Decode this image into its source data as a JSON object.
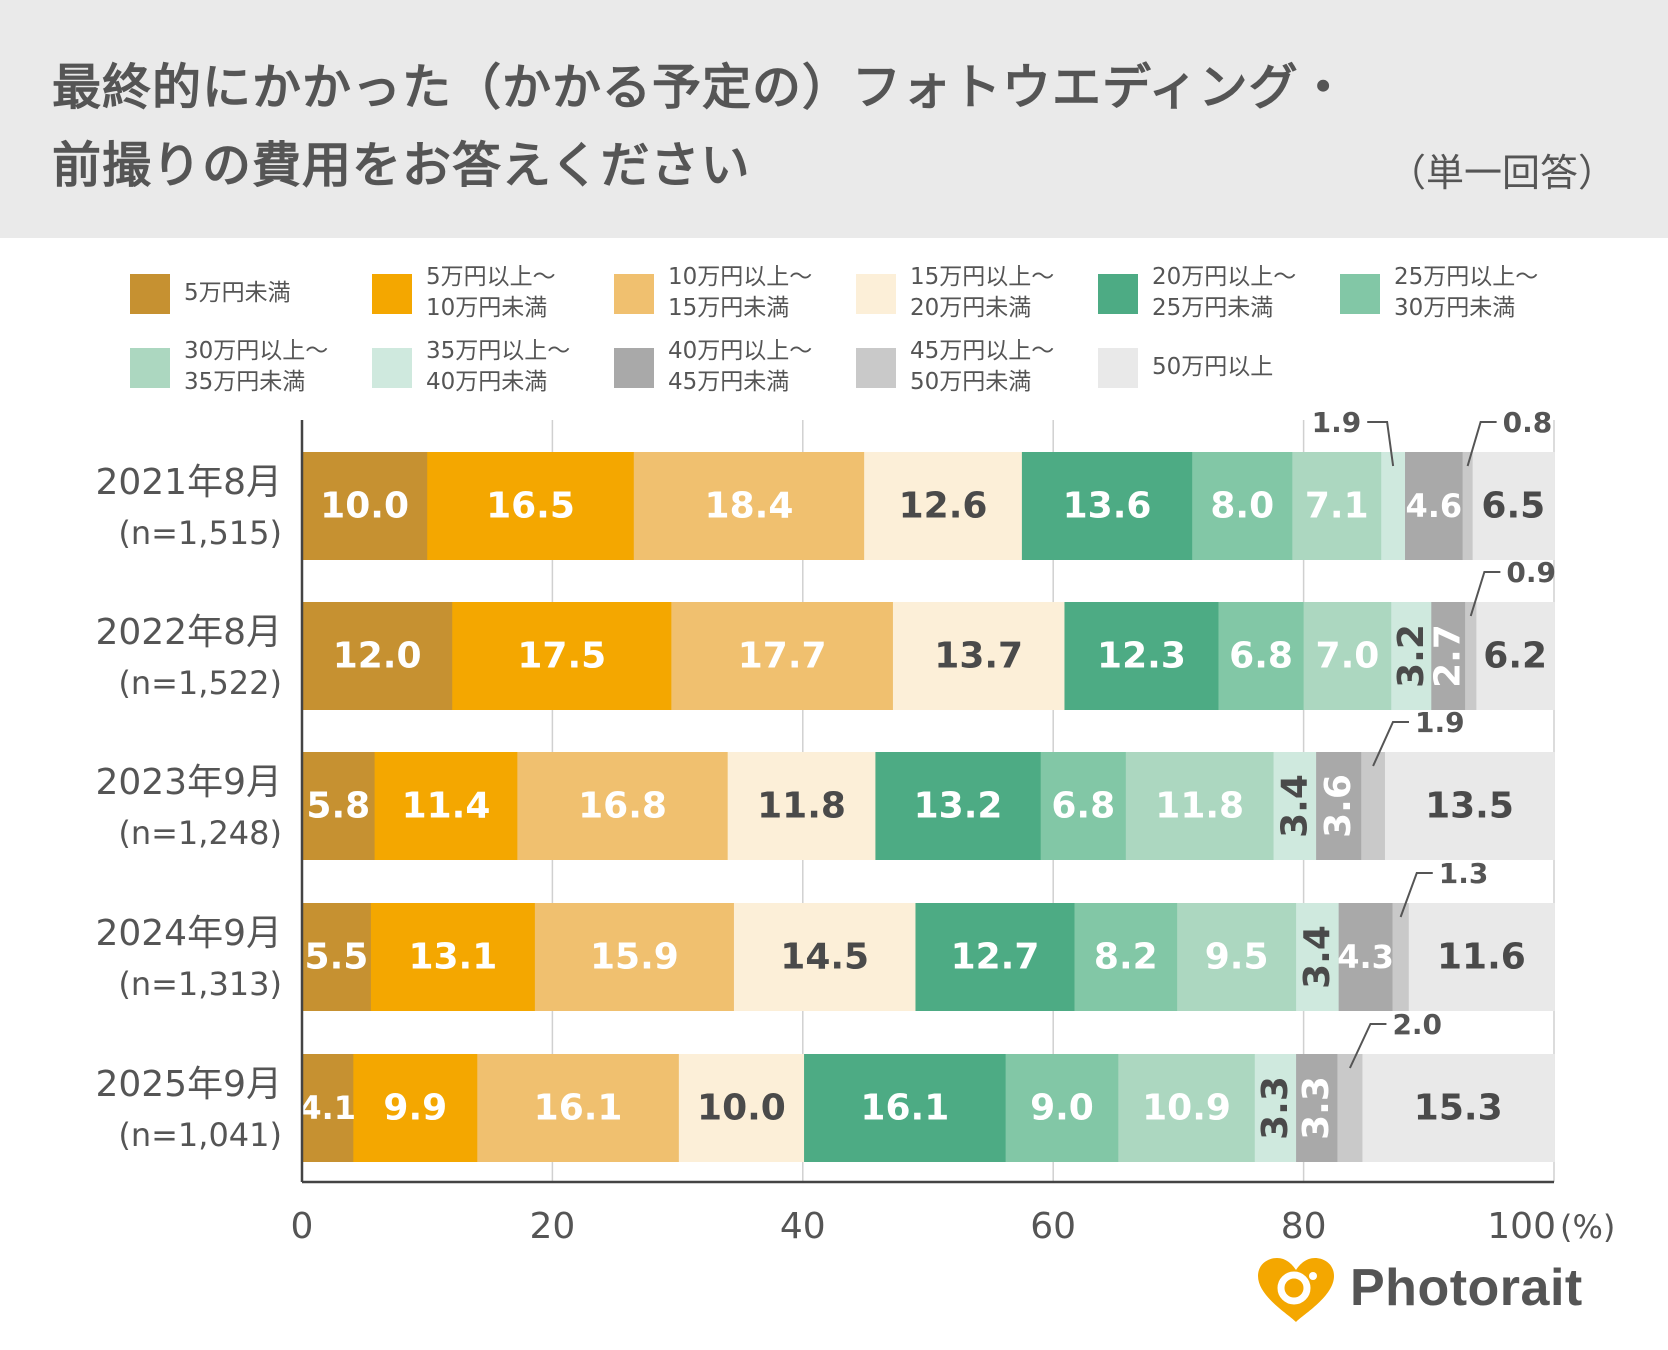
{
  "title": {
    "line1": "最終的にかかった（かかる予定の）フォトウエディング・",
    "line2": "前撮りの費用をお答えください",
    "subtitle": "（単一回答）"
  },
  "chart_data": {
    "type": "stacked-bar-horizontal",
    "x_ticks": [
      "0",
      "20",
      "40",
      "60",
      "80",
      "100"
    ],
    "x_unit": "(%)",
    "xlim": [
      0,
      100
    ],
    "grid": true,
    "legend_position": "top",
    "series": [
      {
        "name": "5万円未満",
        "color": "#c69131"
      },
      {
        "name": "5万円以上〜\n10万円未満",
        "color": "#f4a700"
      },
      {
        "name": "10万円以上〜\n15万円未満",
        "color": "#f0c06f"
      },
      {
        "name": "15万円以上〜\n20万円未満",
        "color": "#fcefd8"
      },
      {
        "name": "20万円以上〜\n25万円未満",
        "color": "#4dab84"
      },
      {
        "name": "25万円以上〜\n30万円未満",
        "color": "#82c7a6"
      },
      {
        "name": "30万円以上〜\n35万円未満",
        "color": "#acd7c0"
      },
      {
        "name": "35万円以上〜\n40万円未満",
        "color": "#cfe9de"
      },
      {
        "name": "40万円以上〜\n45万円未満",
        "color": "#a9a9a9"
      },
      {
        "name": "45万円以上〜\n50万円未満",
        "color": "#c9c9c9"
      },
      {
        "name": "50万円以上",
        "color": "#e9e9e9"
      }
    ],
    "rows": [
      {
        "label": "2021年8月",
        "n": "(n=1,515)",
        "values": [
          10.0,
          16.5,
          18.4,
          12.6,
          13.6,
          8.0,
          7.1,
          1.9,
          4.6,
          0.8,
          6.5
        ],
        "labels": [
          "10.0",
          "16.5",
          "18.4",
          "12.6",
          "13.6",
          "8.0",
          "7.1",
          "1.9",
          "4.6",
          "0.8",
          "6.5"
        ]
      },
      {
        "label": "2022年8月",
        "n": "(n=1,522)",
        "values": [
          12.0,
          17.5,
          17.7,
          13.7,
          12.3,
          6.8,
          7.0,
          3.2,
          2.7,
          0.9,
          6.2
        ],
        "labels": [
          "12.0",
          "17.5",
          "17.7",
          "13.7",
          "12.3",
          "6.8",
          "7.0",
          "3.2",
          "2.7",
          "0.9",
          "6.2"
        ]
      },
      {
        "label": "2023年9月",
        "n": "(n=1,248)",
        "values": [
          5.8,
          11.4,
          16.8,
          11.8,
          13.2,
          6.8,
          11.8,
          3.4,
          3.6,
          1.9,
          13.5
        ],
        "labels": [
          "5.8",
          "11.4",
          "16.8",
          "11.8",
          "13.2",
          "6.8",
          "11.8",
          "3.4",
          "3.6",
          "1.9",
          "13.5"
        ]
      },
      {
        "label": "2024年9月",
        "n": "(n=1,313)",
        "values": [
          5.5,
          13.1,
          15.9,
          14.5,
          12.7,
          8.2,
          9.5,
          3.4,
          4.3,
          1.3,
          11.6
        ],
        "labels": [
          "5.5",
          "13.1",
          "15.9",
          "14.5",
          "12.7",
          "8.2",
          "9.5",
          "3.4",
          "4.3",
          "1.3",
          "11.6"
        ]
      },
      {
        "label": "2025年9月",
        "n": "(n=1,041)",
        "values": [
          4.1,
          9.9,
          16.1,
          10.0,
          16.1,
          9.0,
          10.9,
          3.3,
          3.3,
          2.0,
          15.3
        ],
        "labels": [
          "4.1",
          "9.9",
          "16.1",
          "10.0",
          "16.1",
          "9.0",
          "10.9",
          "3.3",
          "3.3",
          "2.0",
          "15.3"
        ]
      }
    ]
  },
  "logo": {
    "text": "Photorait",
    "color": "#f4a700"
  }
}
